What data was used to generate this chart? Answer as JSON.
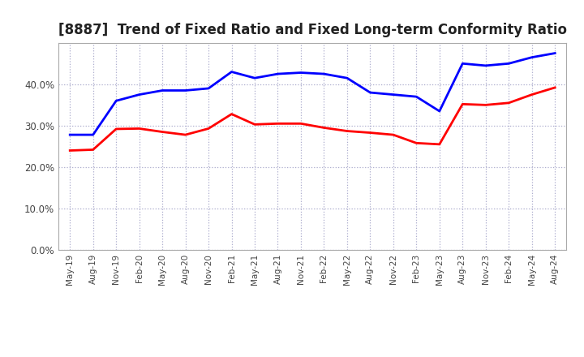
{
  "title": "[8887]  Trend of Fixed Ratio and Fixed Long-term Conformity Ratio",
  "x_labels": [
    "May-19",
    "Aug-19",
    "Nov-19",
    "Feb-20",
    "May-20",
    "Aug-20",
    "Nov-20",
    "Feb-21",
    "May-21",
    "Aug-21",
    "Nov-21",
    "Feb-22",
    "May-22",
    "Aug-22",
    "Nov-22",
    "Feb-23",
    "May-23",
    "Aug-23",
    "Nov-23",
    "Feb-24",
    "May-24",
    "Aug-24"
  ],
  "fixed_ratio": [
    27.8,
    27.8,
    36.0,
    37.5,
    38.5,
    38.5,
    39.0,
    43.0,
    41.5,
    42.5,
    42.8,
    42.5,
    41.5,
    38.0,
    37.5,
    37.0,
    33.5,
    45.0,
    44.5,
    45.0,
    46.5,
    47.5
  ],
  "fixed_lt_ratio": [
    24.0,
    24.2,
    29.2,
    29.3,
    28.5,
    27.8,
    29.3,
    32.8,
    30.3,
    30.5,
    30.5,
    29.5,
    28.7,
    28.3,
    27.8,
    25.8,
    25.5,
    35.2,
    35.0,
    35.5,
    37.5,
    39.2
  ],
  "fixed_ratio_color": "#0000FF",
  "fixed_lt_ratio_color": "#FF0000",
  "ylim": [
    0,
    50
  ],
  "yticks": [
    0,
    10,
    20,
    30,
    40
  ],
  "bg_color": "#FFFFFF",
  "plot_bg_color": "#FFFFFF",
  "grid_color": "#AAAACC",
  "legend_fixed_ratio": "Fixed Ratio",
  "legend_fixed_lt_ratio": "Fixed Long-term Conformity Ratio",
  "title_fontsize": 12,
  "line_width": 2.0,
  "tick_color": "#444444"
}
